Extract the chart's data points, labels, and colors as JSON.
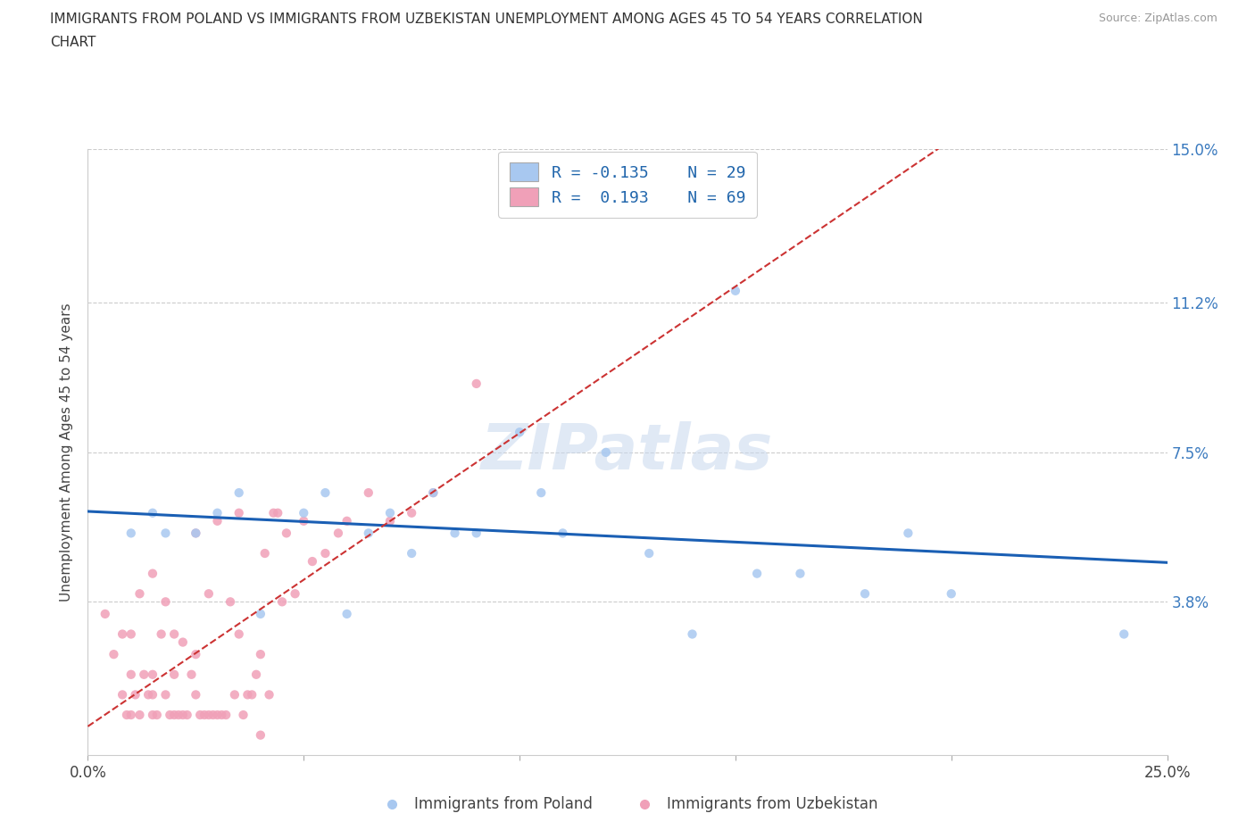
{
  "title_line1": "IMMIGRANTS FROM POLAND VS IMMIGRANTS FROM UZBEKISTAN UNEMPLOYMENT AMONG AGES 45 TO 54 YEARS CORRELATION",
  "title_line2": "CHART",
  "source_text": "Source: ZipAtlas.com",
  "ylabel": "Unemployment Among Ages 45 to 54 years",
  "xlabel_poland": "Immigrants from Poland",
  "xlabel_uzbekistan": "Immigrants from Uzbekistan",
  "watermark": "ZIPatlas",
  "xlim": [
    0.0,
    0.25
  ],
  "ylim": [
    0.0,
    0.15
  ],
  "ytick_vals": [
    0.038,
    0.075,
    0.112,
    0.15
  ],
  "ytick_labels": [
    "3.8%",
    "7.5%",
    "11.2%",
    "15.0%"
  ],
  "xtick_vals": [
    0.0,
    0.05,
    0.1,
    0.15,
    0.2,
    0.25
  ],
  "xtick_labels": [
    "0.0%",
    "",
    "",
    "",
    "",
    "25.0%"
  ],
  "color_poland": "#a8c8f0",
  "color_uzbekistan": "#f0a0b8",
  "line_color_poland": "#1a5fb4",
  "line_color_uzbekistan": "#cc3333",
  "background_color": "#ffffff",
  "poland_x": [
    0.01,
    0.015,
    0.018,
    0.025,
    0.03,
    0.035,
    0.04,
    0.05,
    0.055,
    0.06,
    0.065,
    0.07,
    0.075,
    0.08,
    0.085,
    0.09,
    0.1,
    0.105,
    0.11,
    0.12,
    0.13,
    0.14,
    0.15,
    0.155,
    0.165,
    0.18,
    0.19,
    0.2,
    0.24
  ],
  "poland_y": [
    0.055,
    0.06,
    0.055,
    0.055,
    0.06,
    0.065,
    0.035,
    0.06,
    0.065,
    0.035,
    0.055,
    0.06,
    0.05,
    0.065,
    0.055,
    0.055,
    0.08,
    0.065,
    0.055,
    0.075,
    0.05,
    0.03,
    0.115,
    0.045,
    0.045,
    0.04,
    0.055,
    0.04,
    0.03
  ],
  "uzbekistan_x": [
    0.004,
    0.006,
    0.008,
    0.008,
    0.009,
    0.01,
    0.01,
    0.01,
    0.011,
    0.012,
    0.012,
    0.013,
    0.014,
    0.015,
    0.015,
    0.015,
    0.015,
    0.016,
    0.017,
    0.018,
    0.018,
    0.019,
    0.02,
    0.02,
    0.02,
    0.021,
    0.022,
    0.022,
    0.023,
    0.024,
    0.025,
    0.025,
    0.025,
    0.026,
    0.027,
    0.028,
    0.028,
    0.029,
    0.03,
    0.03,
    0.031,
    0.032,
    0.033,
    0.034,
    0.035,
    0.035,
    0.036,
    0.037,
    0.038,
    0.039,
    0.04,
    0.04,
    0.041,
    0.042,
    0.043,
    0.044,
    0.045,
    0.046,
    0.048,
    0.05,
    0.052,
    0.055,
    0.058,
    0.06,
    0.065,
    0.07,
    0.075,
    0.08,
    0.09
  ],
  "uzbekistan_y": [
    0.035,
    0.025,
    0.015,
    0.03,
    0.01,
    0.01,
    0.02,
    0.03,
    0.015,
    0.01,
    0.04,
    0.02,
    0.015,
    0.01,
    0.015,
    0.02,
    0.045,
    0.01,
    0.03,
    0.015,
    0.038,
    0.01,
    0.01,
    0.02,
    0.03,
    0.01,
    0.01,
    0.028,
    0.01,
    0.02,
    0.015,
    0.025,
    0.055,
    0.01,
    0.01,
    0.01,
    0.04,
    0.01,
    0.01,
    0.058,
    0.01,
    0.01,
    0.038,
    0.015,
    0.03,
    0.06,
    0.01,
    0.015,
    0.015,
    0.02,
    0.005,
    0.025,
    0.05,
    0.015,
    0.06,
    0.06,
    0.038,
    0.055,
    0.04,
    0.058,
    0.048,
    0.05,
    0.055,
    0.058,
    0.065,
    0.058,
    0.06,
    0.065,
    0.092
  ]
}
